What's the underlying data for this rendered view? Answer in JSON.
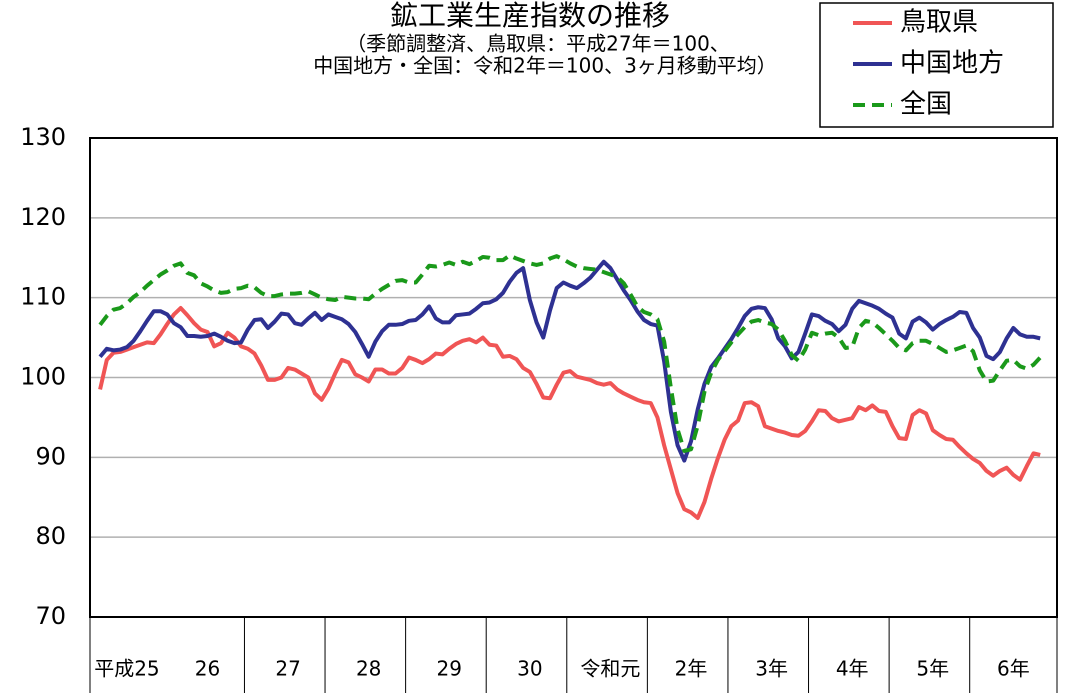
{
  "chart_data": {
    "type": "line",
    "title": "鉱工業生産指数の推移",
    "subtitle": [
      "（季節調整済、鳥取県：平成27年＝100、",
      "中国地方・全国：令和2年＝100、3ヶ月移動平均）"
    ],
    "categories": [
      null,
      null,
      null,
      null,
      null,
      "平成25",
      null,
      null,
      null,
      null,
      null,
      null,
      null,
      null,
      null,
      null,
      null,
      "26",
      null,
      null,
      null,
      null,
      null,
      null,
      null,
      null,
      null,
      null,
      null,
      "27",
      null,
      null,
      null,
      null,
      null,
      null,
      null,
      null,
      null,
      null,
      null,
      "28",
      null,
      null,
      null,
      null,
      null,
      null,
      null,
      null,
      null,
      null,
      null,
      "29",
      null,
      null,
      null,
      null,
      null,
      null,
      null,
      null,
      null,
      null,
      null,
      "30",
      null,
      null,
      null,
      null,
      null,
      null,
      null,
      null,
      null,
      null,
      null,
      "令和元",
      null,
      null,
      null,
      null,
      null,
      null,
      null,
      null,
      null,
      null,
      null,
      "2年",
      null,
      null,
      null,
      null,
      null,
      null,
      null,
      null,
      null,
      null,
      null,
      "3年",
      null,
      null,
      null,
      null,
      null,
      null,
      null,
      null,
      null,
      null,
      null,
      "4年",
      null,
      null,
      null,
      null,
      null,
      null,
      null,
      null,
      null,
      null,
      null,
      "5年",
      null,
      null,
      null,
      null,
      null,
      null,
      null,
      null,
      null,
      null,
      null,
      "6年",
      null,
      null,
      null,
      null,
      null,
      null
    ],
    "series": [
      {
        "name": "鳥取県",
        "color": "#f05555",
        "line_style": "solid",
        "values": [
          null,
          98.5,
          102.2,
          103.1,
          103.2,
          103.5,
          103.8,
          104.1,
          104.4,
          104.3,
          105.4,
          106.7,
          107.9,
          108.7,
          107.8,
          106.8,
          106.0,
          105.7,
          103.9,
          104.3,
          105.6,
          105.0,
          103.9,
          103.6,
          103.0,
          101.5,
          99.7,
          99.7,
          100.0,
          101.2,
          101.0,
          100.5,
          100.0,
          98.0,
          97.2,
          98.6,
          100.5,
          102.2,
          101.9,
          100.4,
          100.0,
          99.5,
          101.0,
          101.0,
          100.5,
          100.5,
          101.2,
          102.5,
          102.2,
          101.8,
          102.3,
          103.0,
          102.9,
          103.6,
          104.2,
          104.6,
          104.8,
          104.4,
          105.0,
          104.1,
          104.0,
          102.6,
          102.7,
          102.3,
          101.2,
          100.7,
          99.2,
          97.5,
          97.4,
          99.1,
          100.6,
          100.8,
          100.1,
          99.9,
          99.7,
          99.3,
          99.1,
          99.3,
          98.5,
          98.0,
          97.6,
          97.2,
          96.9,
          96.8,
          95.0,
          91.5,
          88.5,
          85.5,
          83.5,
          83.1,
          82.4,
          84.4,
          87.3,
          89.9,
          92.2,
          93.9,
          94.6,
          96.8,
          96.9,
          96.4,
          93.9,
          93.6,
          93.3,
          93.1,
          92.8,
          92.7,
          93.3,
          94.5,
          95.9,
          95.8,
          94.9,
          94.5,
          94.7,
          94.9,
          96.3,
          95.9,
          96.5,
          95.8,
          95.7,
          93.9,
          92.4,
          92.3,
          95.3,
          95.9,
          95.5,
          93.4,
          92.8,
          92.3,
          92.2,
          91.3,
          90.5,
          89.8,
          89.3,
          88.3,
          87.7,
          88.3,
          88.7,
          87.8,
          87.2,
          88.9,
          90.5,
          90.3,
          null,
          null
        ]
      },
      {
        "name": "中国地方",
        "color": "#2e3192",
        "line_style": "solid",
        "values": [
          null,
          102.6,
          103.6,
          103.4,
          103.5,
          103.8,
          104.6,
          105.8,
          107.1,
          108.3,
          108.3,
          107.9,
          106.8,
          106.3,
          105.2,
          105.2,
          105.1,
          105.2,
          105.5,
          105.1,
          104.6,
          104.3,
          104.4,
          106.0,
          107.2,
          107.3,
          106.2,
          107.0,
          108.0,
          107.9,
          106.8,
          106.6,
          107.4,
          108.1,
          107.2,
          107.9,
          107.6,
          107.3,
          106.7,
          105.7,
          104.2,
          102.6,
          104.5,
          105.8,
          106.6,
          106.6,
          106.7,
          107.1,
          107.2,
          107.9,
          108.9,
          107.4,
          106.9,
          106.9,
          107.8,
          107.9,
          108.0,
          108.6,
          109.3,
          109.4,
          109.8,
          110.6,
          112.0,
          113.1,
          113.7,
          109.7,
          106.9,
          105.0,
          108.4,
          111.2,
          111.9,
          111.5,
          111.2,
          111.8,
          112.5,
          113.5,
          114.5,
          113.7,
          112.3,
          110.9,
          109.7,
          108.3,
          107.2,
          106.7,
          106.5,
          102.0,
          95.7,
          91.5,
          89.6,
          92.0,
          96.0,
          99.2,
          101.3,
          102.4,
          103.6,
          104.8,
          106.2,
          107.7,
          108.6,
          108.8,
          108.7,
          107.3,
          104.9,
          103.9,
          102.4,
          103.2,
          105.5,
          107.9,
          107.7,
          107.1,
          106.7,
          105.8,
          106.6,
          108.6,
          109.6,
          109.3,
          109.0,
          108.6,
          108.0,
          107.5,
          105.5,
          104.9,
          107.0,
          107.5,
          106.9,
          106.0,
          106.7,
          107.2,
          107.6,
          108.2,
          108.1,
          106.2,
          105.0,
          102.7,
          102.3,
          103.2,
          104.9,
          106.2,
          105.4,
          105.1,
          105.1,
          104.9,
          null,
          null
        ]
      },
      {
        "name": "全国",
        "color": "#1a991a",
        "line_style": "dashed",
        "values": [
          null,
          106.6,
          107.7,
          108.5,
          108.7,
          109.3,
          110.1,
          110.7,
          111.5,
          112.2,
          112.9,
          113.4,
          114.0,
          114.3,
          113.1,
          112.8,
          111.8,
          111.4,
          110.9,
          110.6,
          110.7,
          111.1,
          111.2,
          111.5,
          111.3,
          110.6,
          110.2,
          110.2,
          110.4,
          110.5,
          110.5,
          110.6,
          110.8,
          110.4,
          110.0,
          109.8,
          109.7,
          110.1,
          110.0,
          109.9,
          109.9,
          109.8,
          110.5,
          111.1,
          111.6,
          112.1,
          112.2,
          111.9,
          111.9,
          112.9,
          114.0,
          113.9,
          114.1,
          114.4,
          114.1,
          114.5,
          114.2,
          114.6,
          115.1,
          115.0,
          114.7,
          114.7,
          115.3,
          114.9,
          114.6,
          114.3,
          114.1,
          114.3,
          114.9,
          115.2,
          114.8,
          114.3,
          113.9,
          113.7,
          113.6,
          113.5,
          113.2,
          112.9,
          112.6,
          111.8,
          110.4,
          108.9,
          108.2,
          107.9,
          107.3,
          104.5,
          98.7,
          93.5,
          90.8,
          91.0,
          94.0,
          98.2,
          100.6,
          102.2,
          103.3,
          104.4,
          105.4,
          106.3,
          107.0,
          107.2,
          106.9,
          106.7,
          106.0,
          104.6,
          102.8,
          102.1,
          103.5,
          105.6,
          105.3,
          105.5,
          105.6,
          105.0,
          103.7,
          103.8,
          106.2,
          107.1,
          106.9,
          106.2,
          105.4,
          104.6,
          103.7,
          103.4,
          104.3,
          104.6,
          104.6,
          104.2,
          103.7,
          103.2,
          103.4,
          103.7,
          104.0,
          103.3,
          100.9,
          99.5,
          99.6,
          100.9,
          102.1,
          102.2,
          101.4,
          101.1,
          101.6,
          102.5,
          null,
          null
        ]
      }
    ],
    "ylim": [
      70,
      130
    ],
    "yticks": [
      70,
      80,
      90,
      100,
      110,
      120,
      130
    ],
    "grid": true,
    "legend": "top-right"
  }
}
